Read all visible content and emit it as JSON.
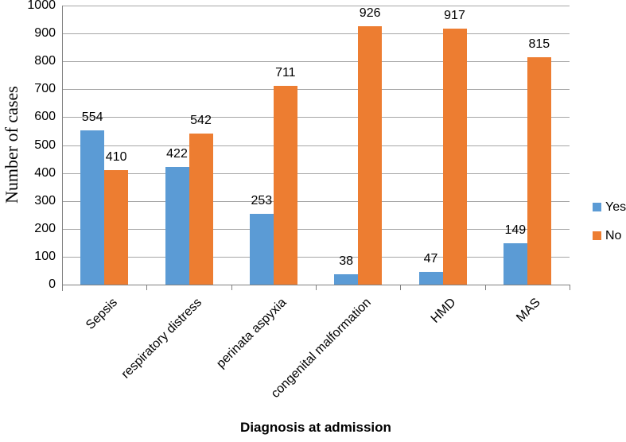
{
  "figure": {
    "background": "#ffffff"
  },
  "chart_data": {
    "type": "bar",
    "title": "",
    "categories": [
      "Sepsis",
      "respiratory distress",
      "perinata aspyxia",
      "congenital malformation",
      "HMD",
      "MAS"
    ],
    "series": [
      {
        "name": "Yes",
        "color": "#5B9BD5",
        "values": [
          554,
          422,
          253,
          38,
          47,
          149
        ]
      },
      {
        "name": "No",
        "color": "#ED7D31",
        "values": [
          410,
          542,
          711,
          926,
          917,
          815
        ]
      }
    ],
    "data_labels": [
      {
        "series": "Yes",
        "values": [
          "554",
          "422",
          "253",
          "38",
          "47",
          "149"
        ]
      },
      {
        "series": "No",
        "values": [
          "410",
          "542",
          "711",
          "926",
          "917",
          "815"
        ]
      }
    ],
    "xlabel": "Diagnosis at admission",
    "ylabel": "Number of cases",
    "ylim": [
      0,
      1000
    ],
    "ytick_step": 100,
    "yticks": [
      "0",
      "100",
      "200",
      "300",
      "400",
      "500",
      "600",
      "700",
      "800",
      "900",
      "1000"
    ],
    "grid": true,
    "legend_position": "right",
    "legend_entries": [
      "Yes",
      "No"
    ],
    "colors": {
      "gridline": "#a6a6a6",
      "axis": "#808080",
      "text": "#000000"
    }
  }
}
